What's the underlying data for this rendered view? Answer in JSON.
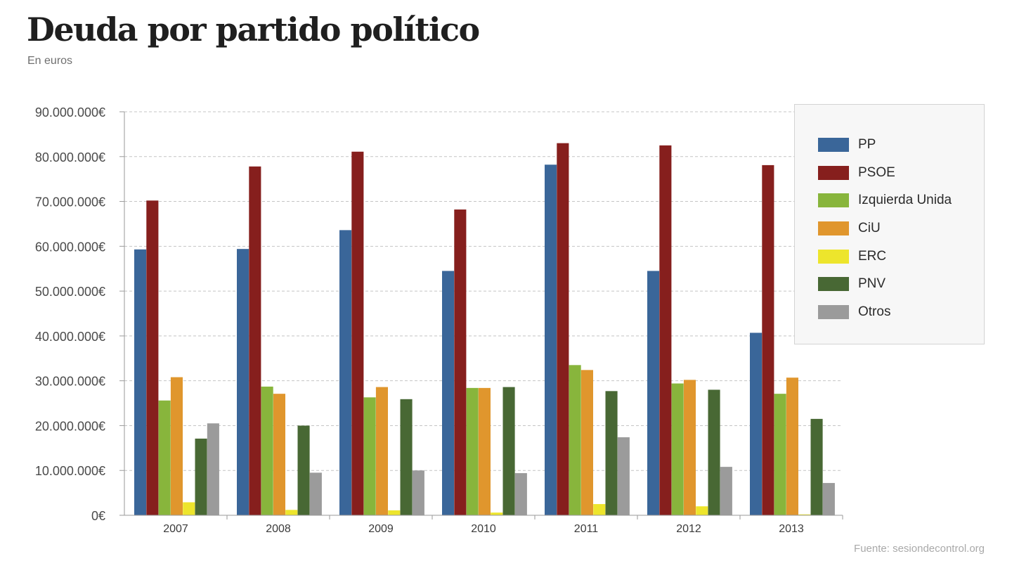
{
  "header": {
    "title": "Deuda por partido político",
    "subtitle": "En euros"
  },
  "footer": {
    "source": "Fuente: sesiondecontrol.org"
  },
  "chart_data": {
    "type": "bar",
    "title": "Deuda por partido político",
    "subtitle": "En euros",
    "xlabel": "",
    "ylabel": "",
    "ylim": [
      0,
      90000000
    ],
    "y_tick_step": 10000000,
    "y_tick_labels": [
      "0€",
      "10.000.000€",
      "20.000.000€",
      "30.000.000€",
      "40.000.000€",
      "50.000.000€",
      "60.000.000€",
      "70.000.000€",
      "80.000.000€",
      "90.000.000€"
    ],
    "grid": true,
    "legend_position": "top-right",
    "categories": [
      "2007",
      "2008",
      "2009",
      "2010",
      "2011",
      "2012",
      "2013"
    ],
    "series": [
      {
        "name": "PP",
        "color": "#3a6699",
        "values": [
          59300000,
          59400000,
          63600000,
          54500000,
          78200000,
          54500000,
          40700000
        ]
      },
      {
        "name": "PSOE",
        "color": "#861f1d",
        "values": [
          70200000,
          77800000,
          81100000,
          68200000,
          83000000,
          82500000,
          78100000
        ]
      },
      {
        "name": "Izquierda Unida",
        "color": "#88b53c",
        "values": [
          25600000,
          28700000,
          26300000,
          28400000,
          33500000,
          29400000,
          27100000
        ]
      },
      {
        "name": "CiU",
        "color": "#e0962d",
        "values": [
          30800000,
          27100000,
          28600000,
          28400000,
          32400000,
          30200000,
          30700000
        ]
      },
      {
        "name": "ERC",
        "color": "#ede52c",
        "values": [
          2900000,
          1200000,
          1100000,
          600000,
          2500000,
          2000000,
          200000
        ]
      },
      {
        "name": "PNV",
        "color": "#486834",
        "values": [
          17100000,
          20000000,
          25900000,
          28600000,
          27700000,
          28000000,
          21500000
        ]
      },
      {
        "name": "Otros",
        "color": "#9b9b9b",
        "values": [
          20500000,
          9500000,
          10000000,
          9400000,
          17400000,
          10800000,
          7200000
        ]
      }
    ]
  }
}
